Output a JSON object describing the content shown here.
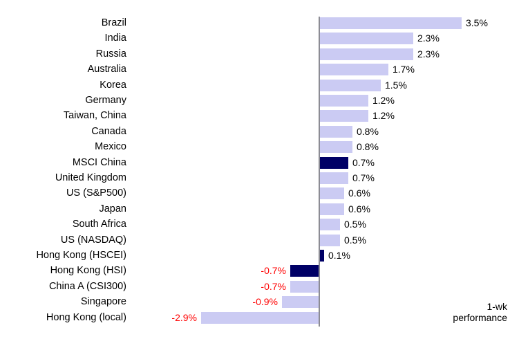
{
  "chart_data": {
    "type": "bar",
    "orientation": "horizontal",
    "title": "",
    "xlabel": "",
    "ylabel": "",
    "xlim": [
      -3.5,
      4.7
    ],
    "grid": false,
    "legend": "none",
    "annotation": {
      "line1": "1-wk",
      "line2": "performance"
    },
    "categories": [
      "Brazil",
      "India",
      "Russia",
      "Australia",
      "Korea",
      "Germany",
      "Taiwan, China",
      "Canada",
      "Mexico",
      "MSCI China",
      "United Kingdom",
      "US (S&P500)",
      "Japan",
      "South Africa",
      "US (NASDAQ)",
      "Hong Kong (HSCEI)",
      "Hong Kong (HSI)",
      "China A (CSI300)",
      "Singapore",
      "Hong Kong (local)"
    ],
    "rows": [
      {
        "label": "Brazil",
        "value": 3.5,
        "display": "3.5%",
        "highlight": false
      },
      {
        "label": "India",
        "value": 2.3,
        "display": "2.3%",
        "highlight": false
      },
      {
        "label": "Russia",
        "value": 2.3,
        "display": "2.3%",
        "highlight": false
      },
      {
        "label": "Australia",
        "value": 1.7,
        "display": "1.7%",
        "highlight": false
      },
      {
        "label": "Korea",
        "value": 1.5,
        "display": "1.5%",
        "highlight": false
      },
      {
        "label": "Germany",
        "value": 1.2,
        "display": "1.2%",
        "highlight": false
      },
      {
        "label": "Taiwan, China",
        "value": 1.2,
        "display": "1.2%",
        "highlight": false
      },
      {
        "label": "Canada",
        "value": 0.8,
        "display": "0.8%",
        "highlight": false
      },
      {
        "label": "Mexico",
        "value": 0.8,
        "display": "0.8%",
        "highlight": false
      },
      {
        "label": "MSCI China",
        "value": 0.7,
        "display": "0.7%",
        "highlight": true
      },
      {
        "label": "United Kingdom",
        "value": 0.7,
        "display": "0.7%",
        "highlight": false
      },
      {
        "label": "US (S&P500)",
        "value": 0.6,
        "display": "0.6%",
        "highlight": false
      },
      {
        "label": "Japan",
        "value": 0.6,
        "display": "0.6%",
        "highlight": false
      },
      {
        "label": "South Africa",
        "value": 0.5,
        "display": "0.5%",
        "highlight": false
      },
      {
        "label": "US (NASDAQ)",
        "value": 0.5,
        "display": "0.5%",
        "highlight": false
      },
      {
        "label": "Hong Kong (HSCEI)",
        "value": 0.1,
        "display": "0.1%",
        "highlight": true
      },
      {
        "label": "Hong Kong (HSI)",
        "value": -0.7,
        "display": "-0.7%",
        "highlight": true
      },
      {
        "label": "China A (CSI300)",
        "value": -0.7,
        "display": "-0.7%",
        "highlight": false
      },
      {
        "label": "Singapore",
        "value": -0.9,
        "display": "-0.9%",
        "highlight": false
      },
      {
        "label": "Hong Kong (local)",
        "value": -2.9,
        "display": "-2.9%",
        "highlight": false
      }
    ],
    "colors": {
      "bar_light": "#CBCBF3",
      "bar_dark": "#000066",
      "label_positive": "#000000",
      "label_negative": "#FF0000",
      "axis_line": "#8C8C94",
      "background": "#FFFFFF",
      "category_text": "#000000",
      "annotation_text": "#000000"
    }
  }
}
